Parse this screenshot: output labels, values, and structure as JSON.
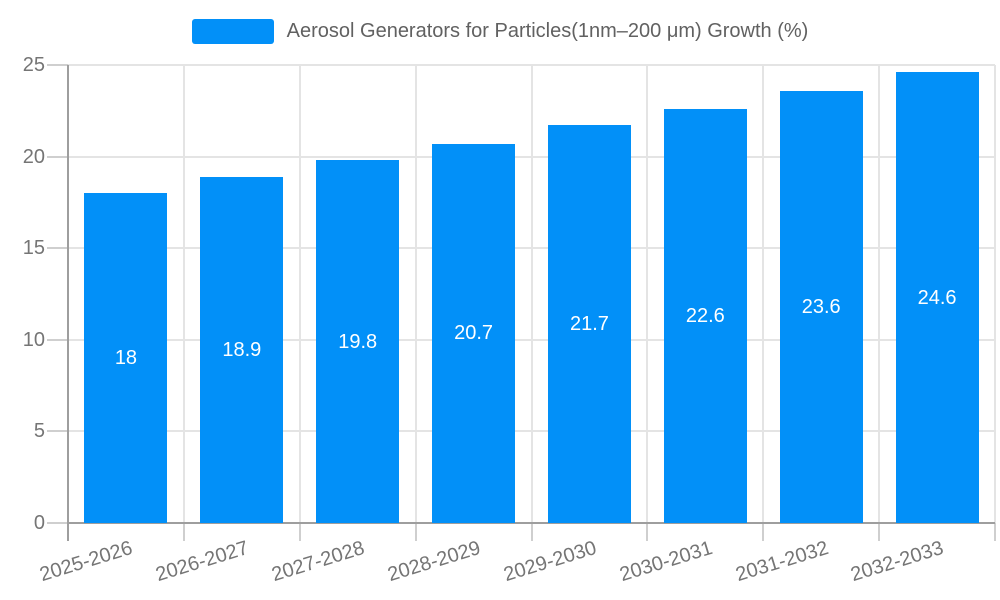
{
  "chart_data": {
    "type": "bar",
    "title": "Aerosol Generators for Particles(1nm–200 μm) Growth (%)",
    "categories": [
      "2025-2026",
      "2026-2027",
      "2027-2028",
      "2028-2029",
      "2029-2030",
      "2030-2031",
      "2031-2032",
      "2032-2033"
    ],
    "values": [
      18,
      18.9,
      19.8,
      20.7,
      21.7,
      22.6,
      23.6,
      24.6
    ],
    "value_labels": [
      "18",
      "18.9",
      "19.8",
      "20.7",
      "21.7",
      "22.6",
      "23.6",
      "24.6"
    ],
    "xlabel": "",
    "ylabel": "",
    "y_ticks": [
      0,
      5,
      10,
      15,
      20,
      25
    ],
    "ylim": [
      0,
      25
    ],
    "grid": true,
    "legend_position": "top",
    "legend": [
      {
        "label": "Aerosol Generators for Particles(1nm–200 μm) Growth (%)",
        "color": "#0290f8"
      }
    ],
    "colors": {
      "bar": "#0290f8",
      "grid_line": "#e4e4e4",
      "axis_line": "#9e9e9e",
      "tick_line": "#cfcfcf",
      "tick_text": "#757575",
      "title_text": "#616161",
      "value_text": "#ffffff",
      "background": "#ffffff"
    }
  }
}
